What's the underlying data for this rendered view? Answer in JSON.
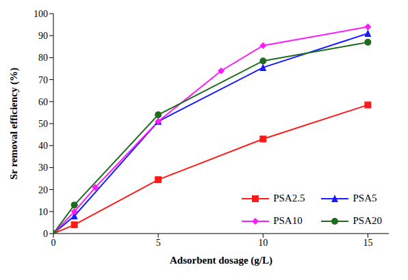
{
  "chart_data": {
    "type": "line",
    "x_label": "Adsorbent dosage (g/L)",
    "y_label": "Sr removal efficiency (%)",
    "xlim": [
      0,
      16
    ],
    "xticks": [
      0,
      5,
      10,
      15
    ],
    "ylim": [
      0,
      100
    ],
    "yticks": [
      0,
      10,
      20,
      30,
      40,
      50,
      60,
      70,
      80,
      90,
      100
    ],
    "grid": false,
    "legend": "lower right",
    "series": [
      {
        "name": "PSA2.5",
        "color": "#ff1a1a",
        "marker": "square",
        "x": [
          0,
          1,
          5,
          10,
          15
        ],
        "values": [
          0,
          4,
          24.5,
          43,
          58.5
        ]
      },
      {
        "name": "PSA5",
        "color": "#1a1aff",
        "marker": "triangle",
        "x": [
          0,
          1,
          5,
          10,
          15
        ],
        "values": [
          0,
          8,
          51,
          75.5,
          91
        ]
      },
      {
        "name": "PSA10",
        "color": "#ff1aff",
        "marker": "diamond",
        "x": [
          0,
          1,
          2,
          5,
          8,
          10,
          15
        ],
        "values": [
          0,
          10,
          21,
          51,
          74,
          85.5,
          94
        ]
      },
      {
        "name": "PSA20",
        "color": "#1f6b1f",
        "marker": "circle",
        "x": [
          0,
          1,
          5,
          10,
          15
        ],
        "values": [
          0,
          13,
          54,
          78.5,
          87
        ]
      }
    ]
  }
}
